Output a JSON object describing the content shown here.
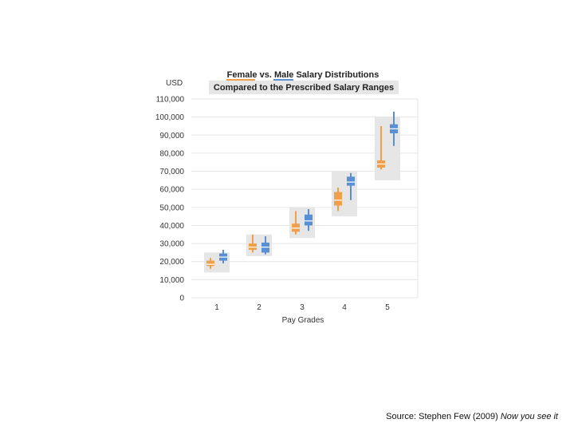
{
  "chart_data": {
    "type": "boxplot",
    "title": [
      "Female vs. Male Salary Distributions",
      "Compared to the Prescribed Salary Ranges"
    ],
    "ylabel": "USD",
    "xlabel": "Pay Grades",
    "ylim": [
      0,
      110000
    ],
    "yticks": [
      0,
      10000,
      20000,
      30000,
      40000,
      50000,
      60000,
      70000,
      80000,
      90000,
      100000,
      110000
    ],
    "ytick_labels": [
      "0",
      "10,000",
      "20,000",
      "30,000",
      "40,000",
      "50,000",
      "60,000",
      "70,000",
      "80,000",
      "90,000",
      "100,000",
      "110,000"
    ],
    "categories": [
      "1",
      "2",
      "3",
      "4",
      "5"
    ],
    "ranges": [
      {
        "min": 14000,
        "max": 25000
      },
      {
        "min": 23000,
        "max": 35000
      },
      {
        "min": 33000,
        "max": 50000
      },
      {
        "min": 45000,
        "max": 70000
      },
      {
        "min": 65000,
        "max": 100000
      }
    ],
    "series": [
      {
        "name": "Female",
        "color": "#F0A04B",
        "boxes": [
          {
            "min": 16000,
            "q1": 17500,
            "median": 18500,
            "q3": 20500,
            "max": 22000
          },
          {
            "min": 25000,
            "q1": 26500,
            "median": 28000,
            "q3": 30000,
            "max": 35000
          },
          {
            "min": 35000,
            "q1": 36500,
            "median": 38500,
            "q3": 41000,
            "max": 48000
          },
          {
            "min": 48000,
            "q1": 51000,
            "median": 54000,
            "q3": 58500,
            "max": 61000
          },
          {
            "min": 71000,
            "q1": 72000,
            "median": 74000,
            "q3": 76000,
            "max": 95000
          }
        ]
      },
      {
        "name": "Male",
        "color": "#5B8FD3",
        "boxes": [
          {
            "min": 19000,
            "q1": 20500,
            "median": 22500,
            "q3": 24500,
            "max": 26500
          },
          {
            "min": 24000,
            "q1": 25000,
            "median": 28000,
            "q3": 30500,
            "max": 34000
          },
          {
            "min": 37000,
            "q1": 40000,
            "median": 42500,
            "q3": 46000,
            "max": 49000
          },
          {
            "min": 54000,
            "q1": 62000,
            "median": 64000,
            "q3": 67000,
            "max": 69000
          },
          {
            "min": 84000,
            "q1": 91000,
            "median": 93500,
            "q3": 96000,
            "max": 103000
          }
        ]
      }
    ],
    "range_color": "#E6E6E6",
    "grid": true
  },
  "source": {
    "prefix": "Source: Stephen Few (2009) ",
    "book": "Now you see it"
  }
}
